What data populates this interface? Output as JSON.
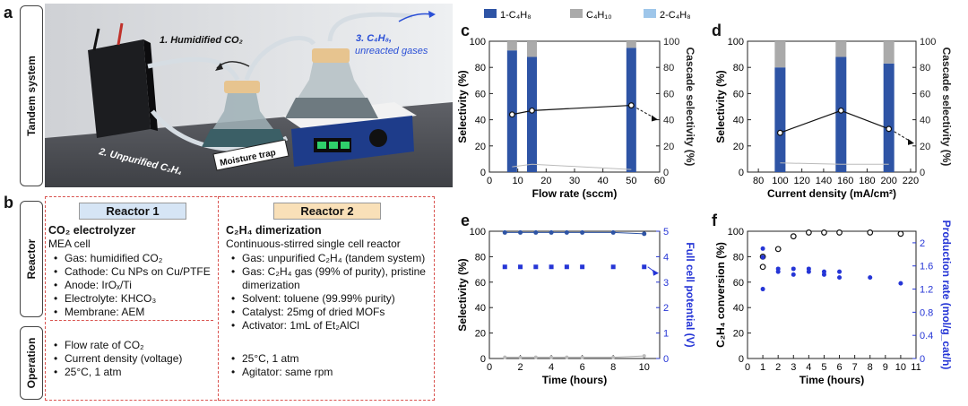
{
  "panel_a": {
    "letter": "a",
    "side_label": "Tandem system",
    "labels": {
      "humidified": "1. Humidified CO₂",
      "c4h8": "3. C₄H₈,",
      "unreacted": "unreacted gases",
      "unpurified": "2. Unpurified C₂H₄",
      "moisture_trap": "Moisture trap"
    }
  },
  "panel_b": {
    "letter": "b",
    "reactor_side_label": "Reactor",
    "operation_side_label": "Operation",
    "reactor1": {
      "header": "Reactor 1",
      "title": "CO₂ electrolyzer",
      "subtitle": "MEA cell",
      "items": [
        "Gas: humidified CO₂",
        "Cathode: Cu NPs on Cu/PTFE",
        "Anode: IrOₓ/Ti",
        "Electrolyte: KHCO₃",
        "Membrane: AEM"
      ],
      "operation": [
        "Flow rate of CO₂",
        "Current density (voltage)",
        "25°C, 1 atm"
      ]
    },
    "reactor2": {
      "header": "Reactor 2",
      "title": "C₂H₄ dimerization",
      "subtitle": "Continuous-stirred single cell reactor",
      "items": [
        "Gas: unpurified C₂H₄ (tandem system)",
        "Gas: C₂H₄ gas (99% of purity), pristine dimerization",
        "Solvent: toluene (99.99% purity)",
        "Catalyst: 25mg of dried MOFs",
        "Activator: 1mL of Et₂AlCl"
      ],
      "operation": [
        "25°C, 1 atm",
        "Agitator: same rpm"
      ]
    }
  },
  "legend_cd": {
    "items": [
      "1-C₄H₈",
      "C₄H₁₀",
      "2-C₄H₈"
    ],
    "colors": [
      "#2e54a5",
      "#aaaaaa",
      "#9ec6ea"
    ]
  },
  "chart_data": [
    {
      "id": "c",
      "letter": "c",
      "type": "bar",
      "xlabel": "Flow rate (sccm)",
      "ylabel": "Selectivity (%)",
      "y2label": "Cascade selectivity (%)",
      "xlim": [
        0,
        60
      ],
      "ylim": [
        0,
        100
      ],
      "y2lim": [
        0,
        100
      ],
      "xticks": [
        0,
        10,
        20,
        30,
        40,
        50,
        60
      ],
      "yticks": [
        0,
        20,
        40,
        60,
        80,
        100
      ],
      "x": [
        8,
        15,
        50
      ],
      "series": [
        {
          "name": "1-C₄H₈",
          "values": [
            93,
            88,
            95
          ]
        },
        {
          "name": "C₄H₁₀",
          "values": [
            7,
            12,
            5
          ]
        }
      ],
      "cascade": [
        44,
        47,
        51
      ],
      "cascade_low": [
        4,
        6,
        2
      ]
    },
    {
      "id": "d",
      "letter": "d",
      "type": "bar",
      "xlabel": "Current density (mA/cm²)",
      "ylabel": "Selectivity (%)",
      "y2label": "Cascade selectivity (%)",
      "xlim": [
        70,
        225
      ],
      "ylim": [
        0,
        100
      ],
      "y2lim": [
        0,
        100
      ],
      "xticks": [
        80,
        100,
        120,
        140,
        160,
        180,
        200,
        220
      ],
      "yticks": [
        0,
        20,
        40,
        60,
        80,
        100
      ],
      "x": [
        100,
        156,
        200
      ],
      "series": [
        {
          "name": "1-C₄H₈",
          "values": [
            80,
            88,
            83
          ]
        },
        {
          "name": "C₄H₁₀",
          "values": [
            20,
            12,
            17
          ]
        }
      ],
      "cascade": [
        30,
        47,
        33
      ],
      "cascade_low": [
        7,
        6,
        6
      ]
    },
    {
      "id": "e",
      "letter": "e",
      "type": "scatter",
      "xlabel": "Time (hours)",
      "ylabel": "Selectivity (%)",
      "y2label": "Full cell potential (V)",
      "xlim": [
        0,
        11
      ],
      "ylim": [
        0,
        100
      ],
      "y2lim": [
        0,
        5
      ],
      "xticks": [
        0,
        2,
        4,
        6,
        8,
        10
      ],
      "yticks": [
        0,
        20,
        40,
        60,
        80,
        100
      ],
      "y2ticks": [
        0,
        1,
        2,
        3,
        4,
        5
      ],
      "x": [
        1,
        2,
        3,
        4,
        5,
        6,
        8,
        10
      ],
      "selectivity_1c4h8": [
        99,
        99,
        99,
        99,
        99,
        99,
        99,
        98
      ],
      "selectivity_low": [
        1,
        1,
        1,
        1,
        1,
        1,
        1,
        2
      ],
      "potential": [
        3.6,
        3.6,
        3.6,
        3.6,
        3.6,
        3.6,
        3.6,
        3.6
      ]
    },
    {
      "id": "f",
      "letter": "f",
      "type": "scatter",
      "xlabel": "Time (hours)",
      "ylabel": "C₂H₄ conversion (%)",
      "y2label": "Production rate (mol/g_cat/h)",
      "xlim": [
        0,
        11
      ],
      "ylim": [
        0,
        100
      ],
      "y2lim": [
        0,
        2.2
      ],
      "xticks": [
        0,
        1,
        2,
        3,
        4,
        5,
        6,
        7,
        8,
        9,
        10,
        11
      ],
      "yticks": [
        0,
        20,
        40,
        60,
        80,
        100
      ],
      "y2ticks": [
        0,
        0.4,
        0.8,
        1.2,
        1.6,
        2.0
      ],
      "conversion_x": [
        1,
        1,
        2,
        3,
        4,
        5,
        6,
        8,
        10
      ],
      "conversion": [
        80,
        72,
        86,
        96,
        99,
        99,
        99,
        99,
        98
      ],
      "rate_x": [
        1,
        1,
        1,
        2,
        2,
        3,
        3,
        4,
        4,
        5,
        5,
        6,
        6,
        8,
        10
      ],
      "rate": [
        1.9,
        1.75,
        1.2,
        1.55,
        1.5,
        1.55,
        1.45,
        1.55,
        1.5,
        1.5,
        1.45,
        1.5,
        1.4,
        1.4,
        1.3
      ]
    }
  ]
}
